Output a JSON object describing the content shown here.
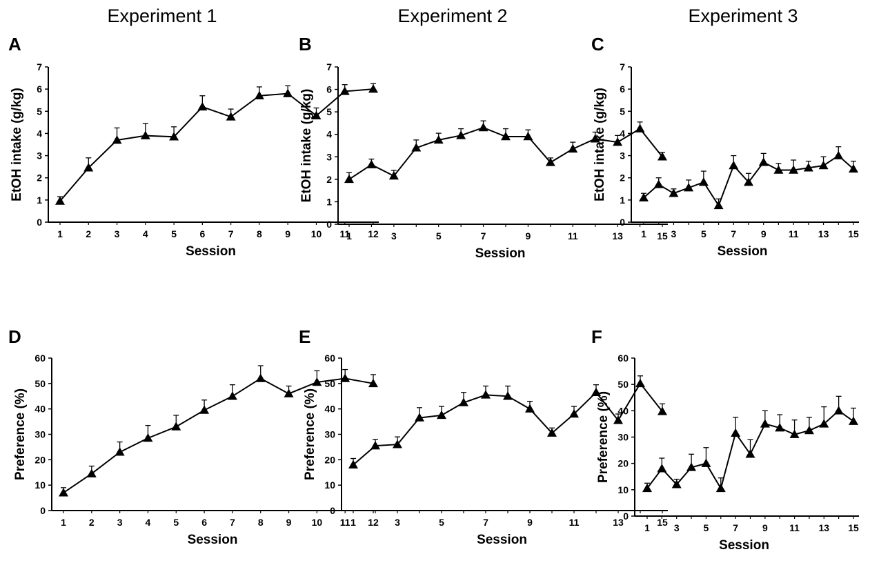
{
  "column_titles": [
    "Experiment 1",
    "Experiment 2",
    "Experiment 3"
  ],
  "chart_data": [
    {
      "panel": "A",
      "type": "line",
      "xlabel": "Session",
      "ylabel": "EtOH intake (g/kg)",
      "xlim": [
        1,
        12
      ],
      "ylim": [
        0,
        7
      ],
      "yticks": [
        0,
        1,
        2,
        3,
        4,
        5,
        6,
        7
      ],
      "xticks": [
        1,
        2,
        3,
        4,
        5,
        6,
        7,
        8,
        9,
        10,
        11,
        12
      ],
      "x": [
        1,
        2,
        3,
        4,
        5,
        6,
        7,
        8,
        9,
        10,
        11,
        12
      ],
      "values": [
        0.95,
        2.45,
        3.7,
        3.9,
        3.85,
        5.2,
        4.75,
        5.7,
        5.8,
        4.8,
        5.9,
        6.0
      ],
      "error": [
        0.2,
        0.45,
        0.55,
        0.55,
        0.45,
        0.5,
        0.35,
        0.4,
        0.35,
        0.35,
        0.3,
        0.25
      ],
      "marker": "triangle"
    },
    {
      "panel": "B",
      "type": "line",
      "xlabel": "Session",
      "ylabel": "EtOH intake (g/kg)",
      "xlim": [
        1,
        15
      ],
      "ylim": [
        0,
        7
      ],
      "yticks": [
        0,
        1,
        2,
        3,
        4,
        5,
        6,
        7
      ],
      "xticks": [
        1,
        3,
        5,
        7,
        9,
        11,
        13,
        15
      ],
      "x": [
        1,
        2,
        3,
        4,
        5,
        6,
        7,
        8,
        9,
        10,
        11,
        12,
        13,
        14,
        15
      ],
      "values": [
        2.0,
        2.65,
        2.15,
        3.4,
        3.75,
        3.95,
        4.3,
        3.9,
        3.9,
        2.75,
        3.35,
        3.8,
        3.65,
        4.25,
        3.0
      ],
      "error": [
        0.3,
        0.25,
        0.25,
        0.35,
        0.3,
        0.3,
        0.3,
        0.35,
        0.3,
        0.2,
        0.3,
        0.3,
        0.3,
        0.3,
        0.2
      ],
      "marker": "triangle"
    },
    {
      "panel": "C",
      "type": "line",
      "xlabel": "Session",
      "ylabel": "EtOH intake (g/kg)",
      "xlim": [
        1,
        15
      ],
      "ylim": [
        0,
        7
      ],
      "yticks": [
        0,
        1,
        2,
        3,
        4,
        5,
        6,
        7
      ],
      "xticks": [
        1,
        3,
        5,
        7,
        9,
        11,
        13,
        15
      ],
      "x": [
        1,
        2,
        3,
        4,
        5,
        6,
        7,
        8,
        9,
        10,
        11,
        12,
        13,
        14,
        15
      ],
      "values": [
        1.1,
        1.7,
        1.3,
        1.55,
        1.8,
        0.75,
        2.55,
        1.8,
        2.7,
        2.35,
        2.35,
        2.45,
        2.55,
        3.0,
        2.4
      ],
      "error": [
        0.2,
        0.3,
        0.2,
        0.35,
        0.5,
        0.3,
        0.45,
        0.4,
        0.4,
        0.3,
        0.45,
        0.3,
        0.4,
        0.4,
        0.35
      ],
      "marker": "triangle"
    },
    {
      "panel": "D",
      "type": "line",
      "xlabel": "Session",
      "ylabel": "Preference (%)",
      "xlim": [
        1,
        12
      ],
      "ylim": [
        0,
        60
      ],
      "yticks": [
        0,
        10,
        20,
        30,
        40,
        50,
        60
      ],
      "xticks": [
        1,
        2,
        3,
        4,
        5,
        6,
        7,
        8,
        9,
        10,
        11,
        12
      ],
      "x": [
        1,
        2,
        3,
        4,
        5,
        6,
        7,
        8,
        9,
        10,
        11,
        12
      ],
      "values": [
        7,
        14.5,
        23,
        28.5,
        33,
        39.5,
        45,
        52,
        46,
        50.5,
        52,
        50
      ],
      "error": [
        2,
        3,
        4,
        5,
        4.5,
        4,
        4.5,
        5,
        3,
        4.5,
        3.5,
        3.5
      ],
      "marker": "triangle"
    },
    {
      "panel": "E",
      "type": "line",
      "xlabel": "Session",
      "ylabel": "Preference (%)",
      "xlim": [
        1,
        15
      ],
      "ylim": [
        0,
        60
      ],
      "yticks": [
        0,
        10,
        20,
        30,
        40,
        50,
        60
      ],
      "xticks": [
        1,
        3,
        5,
        7,
        9,
        11,
        13,
        15
      ],
      "x": [
        1,
        2,
        3,
        4,
        5,
        6,
        7,
        8,
        9,
        10,
        11,
        12,
        13,
        14,
        15
      ],
      "values": [
        18,
        25.5,
        26,
        36.5,
        37.5,
        42.5,
        45.5,
        45,
        40,
        30.5,
        38,
        46.5,
        35.5,
        50,
        39
      ],
      "error": [
        2.5,
        2.5,
        3,
        4,
        3.5,
        4,
        3.5,
        4,
        3,
        2,
        3,
        3,
        2.5,
        3,
        3
      ],
      "marker": "triangle"
    },
    {
      "panel": "F",
      "type": "line",
      "xlabel": "Session",
      "ylabel": "Preference (%)",
      "xlim": [
        1,
        15
      ],
      "ylim": [
        0,
        60
      ],
      "yticks": [
        0,
        10,
        20,
        30,
        40,
        50,
        60
      ],
      "xticks": [
        1,
        3,
        5,
        7,
        9,
        11,
        13,
        15
      ],
      "x": [
        1,
        2,
        3,
        4,
        5,
        6,
        7,
        8,
        9,
        10,
        11,
        12,
        13,
        14,
        15
      ],
      "values": [
        10.5,
        18,
        12,
        18.5,
        20,
        10.5,
        31.5,
        23.5,
        35,
        33.5,
        31,
        32.5,
        35,
        40,
        36
      ],
      "error": [
        2,
        4,
        2,
        5,
        6,
        4,
        6,
        5.5,
        5,
        5,
        5.5,
        5,
        6.5,
        5.5,
        5
      ],
      "marker": "triangle"
    }
  ]
}
